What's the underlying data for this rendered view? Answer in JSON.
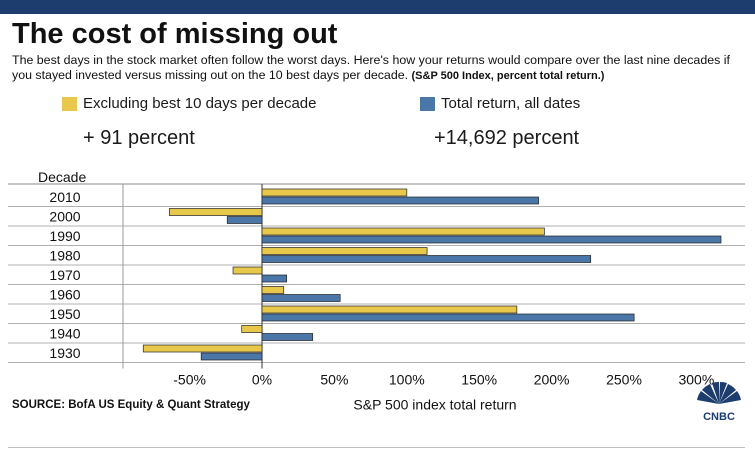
{
  "header": {
    "title": "The cost of missing out",
    "subtitle": "The best days in the stock market often follow the worst days. Here's how your returns would compare over the last nine decades if you stayed invested versus missing out on the 10 best days per decade.",
    "subtitle_note": "(S&P 500 Index, percent total return.)"
  },
  "legend": [
    {
      "label": "Excluding best 10 days per decade",
      "color": "#e8c84a",
      "total": "+ 91 percent"
    },
    {
      "label": "Total return, all dates",
      "color": "#4a76a8",
      "total": "+14,692 percent"
    }
  ],
  "footer": {
    "source": "SOURCE: BofA US Equity & Quant Strategy",
    "logo": "CNBC"
  },
  "chart_data": {
    "type": "bar",
    "orientation": "horizontal",
    "ycol_label": "Decade",
    "xlabel": "S&P 500 index total return",
    "categories": [
      "2010",
      "2000",
      "1990",
      "1980",
      "1970",
      "1960",
      "1950",
      "1940",
      "1930"
    ],
    "series": [
      {
        "name": "Excluding best 10 days per decade",
        "color": "#e8c84a",
        "values": [
          100,
          -64,
          195,
          114,
          -20,
          15,
          176,
          -14,
          -82
        ]
      },
      {
        "name": "Total return, all dates",
        "color": "#4a76a8",
        "values": [
          191,
          -24,
          317,
          227,
          17,
          54,
          257,
          35,
          -42
        ]
      }
    ],
    "xlim": [
      -95,
      320
    ],
    "xticks": [
      -50,
      0,
      50,
      100,
      150,
      200,
      250,
      300
    ],
    "xtick_labels": [
      "-50%",
      "0%",
      "50%",
      "100%",
      "150%",
      "200%",
      "250%",
      "300%"
    ],
    "grid": "vertical tick lines at 0%; row separators"
  }
}
